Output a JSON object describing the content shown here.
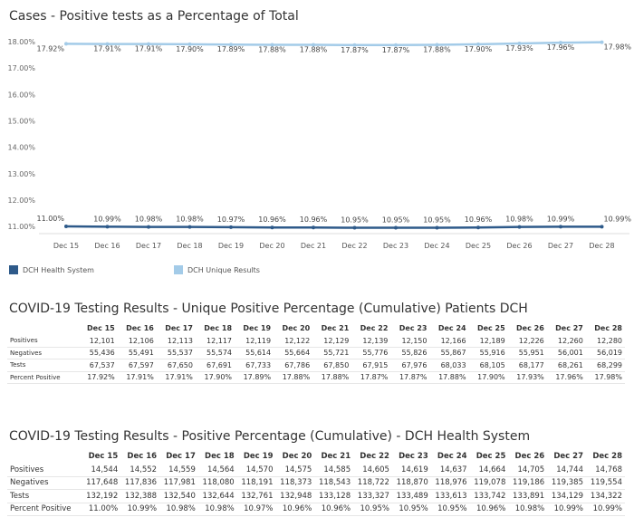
{
  "chart_title": "Cases - Positive tests as a Percentage of Total",
  "chart_data": {
    "type": "line",
    "x": [
      "Dec 15",
      "Dec 16",
      "Dec 17",
      "Dec 18",
      "Dec 19",
      "Dec 20",
      "Dec 21",
      "Dec 22",
      "Dec 23",
      "Dec 24",
      "Dec 25",
      "Dec 26",
      "Dec 27",
      "Dec 28"
    ],
    "yticks": [
      "18.00%",
      "17.00%",
      "16.00%",
      "15.00%",
      "14.00%",
      "13.00%",
      "12.00%",
      "11.00%"
    ],
    "ylim": [
      10.85,
      18.1
    ],
    "y_axis_break": true,
    "series": [
      {
        "name": "DCH Unique Results",
        "color": "#a3cbe8",
        "values": [
          17.92,
          17.91,
          17.91,
          17.9,
          17.89,
          17.88,
          17.88,
          17.87,
          17.87,
          17.88,
          17.9,
          17.93,
          17.96,
          17.98
        ],
        "labels": [
          "17.92%",
          "17.91%",
          "17.91%",
          "17.90%",
          "17.89%",
          "17.88%",
          "17.88%",
          "17.87%",
          "17.87%",
          "17.88%",
          "17.90%",
          "17.93%",
          "17.96%",
          "17.98%"
        ]
      },
      {
        "name": "DCH Health System",
        "color": "#2e5a8a",
        "values": [
          11.0,
          10.99,
          10.98,
          10.98,
          10.97,
          10.96,
          10.96,
          10.95,
          10.95,
          10.95,
          10.96,
          10.98,
          10.99,
          10.99
        ],
        "labels": [
          "11.00%",
          "10.99%",
          "10.98%",
          "10.98%",
          "10.97%",
          "10.96%",
          "10.96%",
          "10.95%",
          "10.95%",
          "10.95%",
          "10.96%",
          "10.98%",
          "10.99%",
          "10.99%"
        ]
      }
    ],
    "legend": [
      "DCH Health System",
      "DCH Unique Results"
    ],
    "legend_placement": "bottom-left",
    "grid": false
  },
  "table1": {
    "title": "COVID-19 Testing Results - Unique Positive Percentage (Cumulative) Patients DCH",
    "headers": [
      "Dec 15",
      "Dec 16",
      "Dec 17",
      "Dec 18",
      "Dec 19",
      "Dec 20",
      "Dec 21",
      "Dec 22",
      "Dec 23",
      "Dec 24",
      "Dec 25",
      "Dec 26",
      "Dec 27",
      "Dec 28"
    ],
    "rows": [
      {
        "label": "Positives",
        "values": [
          "12,101",
          "12,106",
          "12,113",
          "12,117",
          "12,119",
          "12,122",
          "12,129",
          "12,139",
          "12,150",
          "12,166",
          "12,189",
          "12,226",
          "12,260",
          "12,280"
        ]
      },
      {
        "label": "Negatives",
        "values": [
          "55,436",
          "55,491",
          "55,537",
          "55,574",
          "55,614",
          "55,664",
          "55,721",
          "55,776",
          "55,826",
          "55,867",
          "55,916",
          "55,951",
          "56,001",
          "56,019"
        ]
      },
      {
        "label": "Tests",
        "values": [
          "67,537",
          "67,597",
          "67,650",
          "67,691",
          "67,733",
          "67,786",
          "67,850",
          "67,915",
          "67,976",
          "68,033",
          "68,105",
          "68,177",
          "68,261",
          "68,299"
        ]
      },
      {
        "label": "Percent Positive",
        "values": [
          "17.92%",
          "17.91%",
          "17.91%",
          "17.90%",
          "17.89%",
          "17.88%",
          "17.88%",
          "17.87%",
          "17.87%",
          "17.88%",
          "17.90%",
          "17.93%",
          "17.96%",
          "17.98%"
        ]
      }
    ]
  },
  "table2": {
    "title": "COVID-19 Testing Results - Positive Percentage (Cumulative) - DCH Health System",
    "headers": [
      "Dec 15",
      "Dec 16",
      "Dec 17",
      "Dec 18",
      "Dec 19",
      "Dec 20",
      "Dec 21",
      "Dec 22",
      "Dec 23",
      "Dec 24",
      "Dec 25",
      "Dec 26",
      "Dec 27",
      "Dec 28"
    ],
    "rows": [
      {
        "label": "Positives",
        "values": [
          "14,544",
          "14,552",
          "14,559",
          "14,564",
          "14,570",
          "14,575",
          "14,585",
          "14,605",
          "14,619",
          "14,637",
          "14,664",
          "14,705",
          "14,744",
          "14,768"
        ]
      },
      {
        "label": "Negatives",
        "values": [
          "117,648",
          "117,836",
          "117,981",
          "118,080",
          "118,191",
          "118,373",
          "118,543",
          "118,722",
          "118,870",
          "118,976",
          "119,078",
          "119,186",
          "119,385",
          "119,554"
        ]
      },
      {
        "label": "Tests",
        "values": [
          "132,192",
          "132,388",
          "132,540",
          "132,644",
          "132,761",
          "132,948",
          "133,128",
          "133,327",
          "133,489",
          "133,613",
          "133,742",
          "133,891",
          "134,129",
          "134,322"
        ]
      },
      {
        "label": "Percent Positive",
        "values": [
          "11.00%",
          "10.99%",
          "10.98%",
          "10.98%",
          "10.97%",
          "10.96%",
          "10.96%",
          "10.95%",
          "10.95%",
          "10.95%",
          "10.96%",
          "10.98%",
          "10.99%",
          "10.99%"
        ]
      }
    ]
  }
}
